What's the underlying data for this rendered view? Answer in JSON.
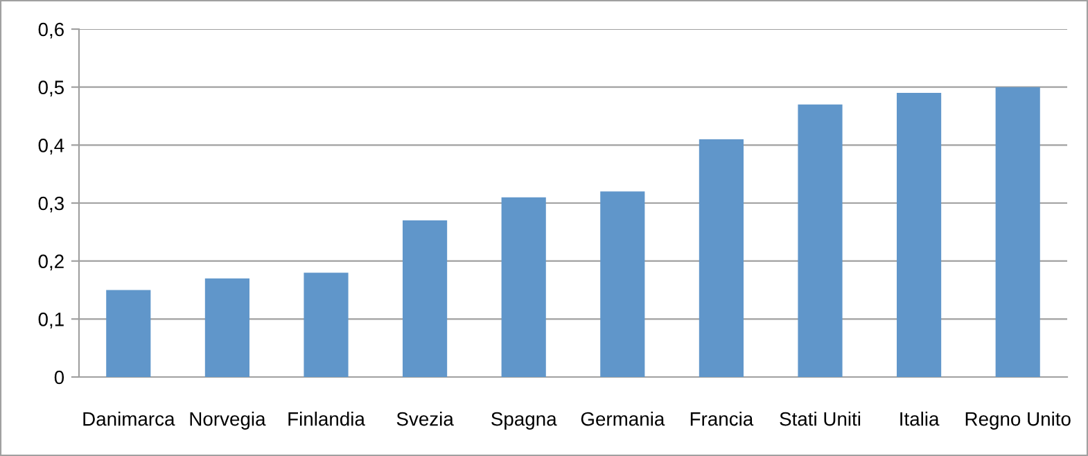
{
  "chart_data": {
    "type": "bar",
    "categories": [
      "Danimarca",
      "Norvegia",
      "Finlandia",
      "Svezia",
      "Spagna",
      "Germania",
      "Francia",
      "Stati Uniti",
      "Italia",
      "Regno Unito"
    ],
    "values": [
      0.15,
      0.17,
      0.18,
      0.27,
      0.31,
      0.32,
      0.41,
      0.47,
      0.49,
      0.5
    ],
    "color": "#6096ca",
    "ylim": [
      0,
      0.6
    ],
    "yticks": [
      0,
      {
        "value": 0.1,
        "label": "0,1"
      },
      {
        "value": 0.2,
        "label": "0,2"
      },
      {
        "value": 0.3,
        "label": "0,3"
      },
      {
        "value": 0.4,
        "label": "0,4"
      },
      {
        "value": 0.5,
        "label": "0,5"
      },
      {
        "value": 0.6,
        "label": "0,6"
      }
    ],
    "grid": "y"
  }
}
